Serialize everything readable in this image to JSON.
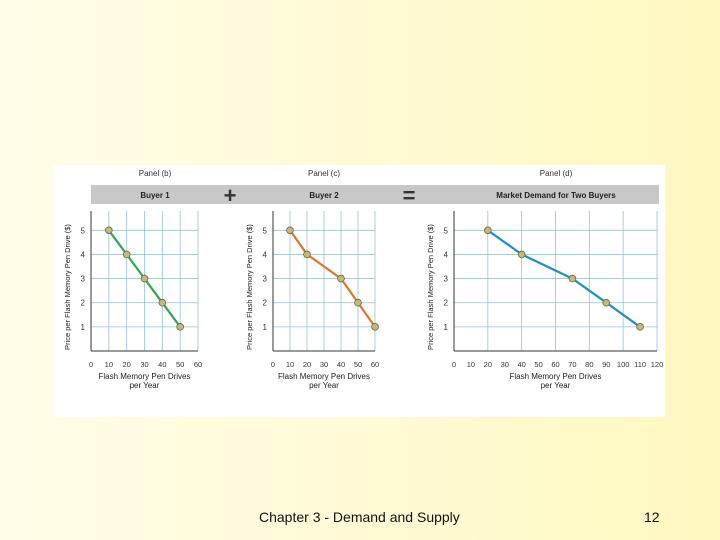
{
  "footer": {
    "title": "Chapter 3 - Demand and Supply",
    "page_number": "12"
  },
  "operators": {
    "plus": "+",
    "equals": "="
  },
  "colors": {
    "header_bar": "#c8c8c8",
    "grid": "#8fc4d6",
    "point_fill": "#c4b97a",
    "point_stroke": "#6b6a3a"
  },
  "chart_data": [
    {
      "type": "line",
      "panel_label": "Panel (b)",
      "title": "Buyer 1",
      "xlabel": "Flash Memory Pen Drives per Year",
      "ylabel": "Price per Flash Memory Pen Drive ($)",
      "xlim": [
        0,
        60
      ],
      "ylim": [
        0,
        5.8
      ],
      "xticks": [
        "0",
        "10",
        "20",
        "30",
        "40",
        "50",
        "60"
      ],
      "yticks": [
        "1",
        "2",
        "3",
        "4",
        "5"
      ],
      "grid": true,
      "color": "#2fa84f",
      "series": [
        {
          "x": [
            10,
            20,
            30,
            40,
            50
          ],
          "y": [
            5,
            4,
            3,
            2,
            1
          ]
        }
      ]
    },
    {
      "type": "line",
      "panel_label": "Panel (c)",
      "title": "Buyer 2",
      "xlabel": "Flash Memory Pen Drives per Year",
      "ylabel": "Price per Flash Memory Pen Drive ($)",
      "xlim": [
        0,
        60
      ],
      "ylim": [
        0,
        5.8
      ],
      "xticks": [
        "0",
        "10",
        "20",
        "30",
        "40",
        "50",
        "60"
      ],
      "yticks": [
        "1",
        "2",
        "3",
        "4",
        "5"
      ],
      "grid": true,
      "color": "#e2742a",
      "series": [
        {
          "x": [
            10,
            20,
            40,
            50,
            60
          ],
          "y": [
            5,
            4,
            3,
            2,
            1
          ]
        }
      ]
    },
    {
      "type": "line",
      "panel_label": "Panel (d)",
      "title": "Market Demand for Two Buyers",
      "xlabel": "Flash Memory Pen Drives per Year",
      "ylabel": "Price per Flash Memory Pen Drive ($)",
      "xlim": [
        0,
        120
      ],
      "ylim": [
        0,
        5.8
      ],
      "xticks": [
        "0",
        "10",
        "20",
        "30",
        "40",
        "50",
        "60",
        "70",
        "80",
        "90",
        "100",
        "110",
        "120"
      ],
      "yticks": [
        "1",
        "2",
        "3",
        "4",
        "5"
      ],
      "grid": true,
      "color": "#1f8fc9",
      "series": [
        {
          "x": [
            20,
            40,
            70,
            90,
            110
          ],
          "y": [
            5,
            4,
            3,
            2,
            1
          ]
        }
      ]
    }
  ]
}
